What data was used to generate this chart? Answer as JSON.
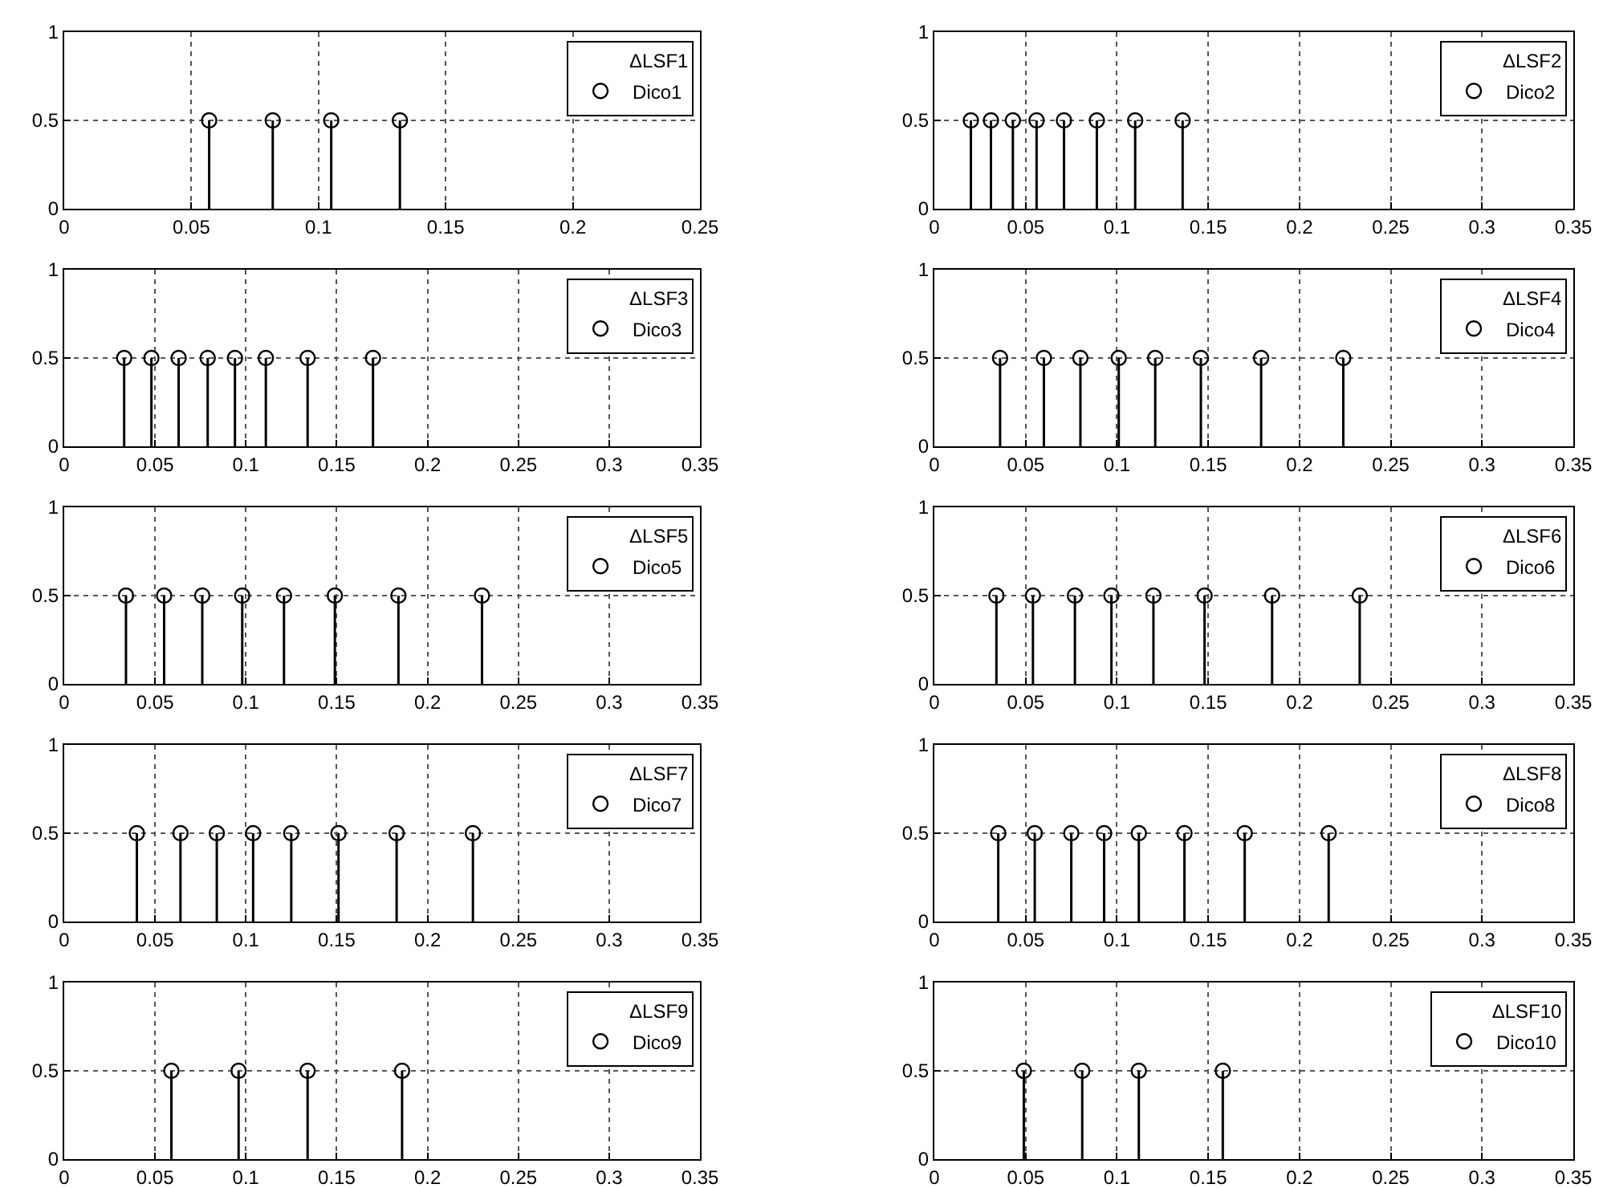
{
  "chart_data": [
    {
      "type": "lollipop",
      "legend_title": "ΔLSF1",
      "grid": true,
      "legend": "top right",
      "marker": "circle",
      "xlim": [
        0,
        0.25
      ],
      "xticks": [
        0,
        0.05,
        0.1,
        0.15,
        0.2,
        0.25
      ],
      "ylim": [
        0,
        1
      ],
      "yticks": [
        0,
        0.5,
        1
      ],
      "series": [
        {
          "name": "Dico1",
          "color": "#000000",
          "x": [
            0.057,
            0.082,
            0.105,
            0.132
          ],
          "values": [
            0.5,
            0.5,
            0.5,
            0.5
          ]
        }
      ]
    },
    {
      "type": "lollipop",
      "legend_title": "ΔLSF2",
      "grid": true,
      "legend": "top right",
      "marker": "circle",
      "xlim": [
        0,
        0.35
      ],
      "xticks": [
        0,
        0.05,
        0.1,
        0.15,
        0.2,
        0.25,
        0.3,
        0.35
      ],
      "ylim": [
        0,
        1
      ],
      "yticks": [
        0,
        0.5,
        1
      ],
      "series": [
        {
          "name": "Dico2",
          "color": "#000000",
          "x": [
            0.02,
            0.031,
            0.043,
            0.056,
            0.071,
            0.089,
            0.11,
            0.136
          ],
          "values": [
            0.5,
            0.5,
            0.5,
            0.5,
            0.5,
            0.5,
            0.5,
            0.5
          ]
        }
      ]
    },
    {
      "type": "lollipop",
      "legend_title": "ΔLSF3",
      "grid": true,
      "legend": "top right",
      "marker": "circle",
      "xlim": [
        0,
        0.35
      ],
      "xticks": [
        0,
        0.05,
        0.1,
        0.15,
        0.2,
        0.25,
        0.3,
        0.35
      ],
      "ylim": [
        0,
        1
      ],
      "yticks": [
        0,
        0.5,
        1
      ],
      "series": [
        {
          "name": "Dico3",
          "color": "#000000",
          "x": [
            0.033,
            0.048,
            0.063,
            0.079,
            0.094,
            0.111,
            0.134,
            0.17
          ],
          "values": [
            0.5,
            0.5,
            0.5,
            0.5,
            0.5,
            0.5,
            0.5,
            0.5
          ]
        }
      ]
    },
    {
      "type": "lollipop",
      "legend_title": "ΔLSF4",
      "grid": true,
      "legend": "top right",
      "marker": "circle",
      "xlim": [
        0,
        0.35
      ],
      "xticks": [
        0,
        0.05,
        0.1,
        0.15,
        0.2,
        0.25,
        0.3,
        0.35
      ],
      "ylim": [
        0,
        1
      ],
      "yticks": [
        0,
        0.5,
        1
      ],
      "series": [
        {
          "name": "Dico4",
          "color": "#000000",
          "x": [
            0.036,
            0.06,
            0.08,
            0.101,
            0.121,
            0.146,
            0.179,
            0.224
          ],
          "values": [
            0.5,
            0.5,
            0.5,
            0.5,
            0.5,
            0.5,
            0.5,
            0.5
          ]
        }
      ]
    },
    {
      "type": "lollipop",
      "legend_title": "ΔLSF5",
      "grid": true,
      "legend": "top right",
      "marker": "circle",
      "xlim": [
        0,
        0.35
      ],
      "xticks": [
        0,
        0.05,
        0.1,
        0.15,
        0.2,
        0.25,
        0.3,
        0.35
      ],
      "ylim": [
        0,
        1
      ],
      "yticks": [
        0,
        0.5,
        1
      ],
      "series": [
        {
          "name": "Dico5",
          "color": "#000000",
          "x": [
            0.034,
            0.055,
            0.076,
            0.098,
            0.121,
            0.149,
            0.184,
            0.23
          ],
          "values": [
            0.5,
            0.5,
            0.5,
            0.5,
            0.5,
            0.5,
            0.5,
            0.5
          ]
        }
      ]
    },
    {
      "type": "lollipop",
      "legend_title": "ΔLSF6",
      "grid": true,
      "legend": "top right",
      "marker": "circle",
      "xlim": [
        0,
        0.35
      ],
      "xticks": [
        0,
        0.05,
        0.1,
        0.15,
        0.2,
        0.25,
        0.3,
        0.35
      ],
      "ylim": [
        0,
        1
      ],
      "yticks": [
        0,
        0.5,
        1
      ],
      "series": [
        {
          "name": "Dico6",
          "color": "#000000",
          "x": [
            0.034,
            0.054,
            0.077,
            0.097,
            0.12,
            0.148,
            0.185,
            0.233
          ],
          "values": [
            0.5,
            0.5,
            0.5,
            0.5,
            0.5,
            0.5,
            0.5,
            0.5
          ]
        }
      ]
    },
    {
      "type": "lollipop",
      "legend_title": "ΔLSF7",
      "grid": true,
      "legend": "top right",
      "marker": "circle",
      "xlim": [
        0,
        0.35
      ],
      "xticks": [
        0,
        0.05,
        0.1,
        0.15,
        0.2,
        0.25,
        0.3,
        0.35
      ],
      "ylim": [
        0,
        1
      ],
      "yticks": [
        0,
        0.5,
        1
      ],
      "series": [
        {
          "name": "Dico7",
          "color": "#000000",
          "x": [
            0.04,
            0.064,
            0.084,
            0.104,
            0.125,
            0.151,
            0.183,
            0.225
          ],
          "values": [
            0.5,
            0.5,
            0.5,
            0.5,
            0.5,
            0.5,
            0.5,
            0.5
          ]
        }
      ]
    },
    {
      "type": "lollipop",
      "legend_title": "ΔLSF8",
      "grid": true,
      "legend": "top right",
      "marker": "circle",
      "xlim": [
        0,
        0.35
      ],
      "xticks": [
        0,
        0.05,
        0.1,
        0.15,
        0.2,
        0.25,
        0.3,
        0.35
      ],
      "ylim": [
        0,
        1
      ],
      "yticks": [
        0,
        0.5,
        1
      ],
      "series": [
        {
          "name": "Dico8",
          "color": "#000000",
          "x": [
            0.035,
            0.055,
            0.075,
            0.093,
            0.112,
            0.137,
            0.17,
            0.216
          ],
          "values": [
            0.5,
            0.5,
            0.5,
            0.5,
            0.5,
            0.5,
            0.5,
            0.5
          ]
        }
      ]
    },
    {
      "type": "lollipop",
      "legend_title": "ΔLSF9",
      "grid": true,
      "legend": "top right",
      "marker": "circle",
      "xlim": [
        0,
        0.35
      ],
      "xticks": [
        0,
        0.05,
        0.1,
        0.15,
        0.2,
        0.25,
        0.3,
        0.35
      ],
      "ylim": [
        0,
        1
      ],
      "yticks": [
        0,
        0.5,
        1
      ],
      "series": [
        {
          "name": "Dico9",
          "color": "#000000",
          "x": [
            0.059,
            0.096,
            0.134,
            0.186
          ],
          "values": [
            0.5,
            0.5,
            0.5,
            0.5
          ]
        }
      ]
    },
    {
      "type": "lollipop",
      "legend_title": "ΔLSF10",
      "grid": true,
      "legend": "top right",
      "marker": "circle",
      "xlim": [
        0,
        0.35
      ],
      "xticks": [
        0,
        0.05,
        0.1,
        0.15,
        0.2,
        0.25,
        0.3,
        0.35
      ],
      "ylim": [
        0,
        1
      ],
      "yticks": [
        0,
        0.5,
        1
      ],
      "series": [
        {
          "name": "Dico10",
          "color": "#000000",
          "x": [
            0.049,
            0.081,
            0.112,
            0.158
          ],
          "values": [
            0.5,
            0.5,
            0.5,
            0.5
          ]
        }
      ]
    }
  ]
}
